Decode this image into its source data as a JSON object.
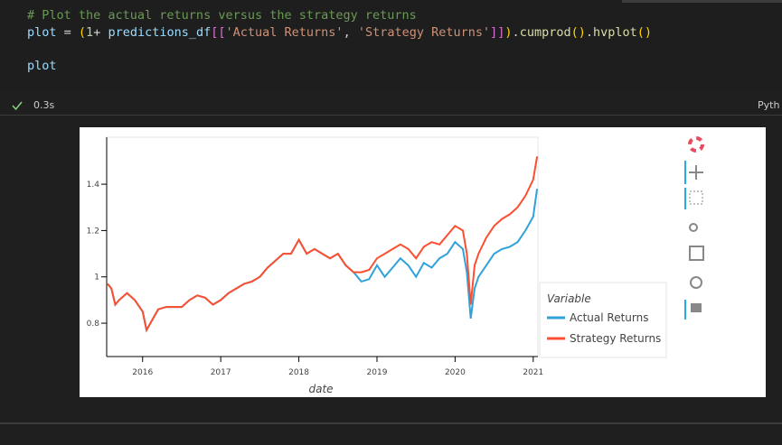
{
  "code": {
    "comment": "# Plot the actual returns versus the strategy returns",
    "line": [
      "plot",
      " = ",
      "(",
      "1",
      "+ ",
      "predictions_df",
      "[[",
      "'Actual Returns'",
      ", ",
      "'Strategy Returns'",
      "]]",
      ")",
      ".",
      "cumprod",
      "()",
      ".",
      "hvplot",
      "()"
    ],
    "result": "plot"
  },
  "status": {
    "time": "0.3s",
    "kernel": "Pyth"
  },
  "chart_data": {
    "type": "line",
    "xlabel": "date",
    "legend_title": "Variable",
    "x": [
      2015.55,
      2015.6,
      2015.65,
      2015.7,
      2015.8,
      2015.9,
      2016.0,
      2016.05,
      2016.1,
      2016.2,
      2016.3,
      2016.4,
      2016.5,
      2016.6,
      2016.7,
      2016.8,
      2016.9,
      2017.0,
      2017.1,
      2017.2,
      2017.3,
      2017.4,
      2017.5,
      2017.6,
      2017.7,
      2017.8,
      2017.9,
      2018.0,
      2018.05,
      2018.1,
      2018.2,
      2018.3,
      2018.4,
      2018.5,
      2018.6,
      2018.7,
      2018.8,
      2018.9,
      2019.0,
      2019.1,
      2019.2,
      2019.3,
      2019.4,
      2019.5,
      2019.6,
      2019.7,
      2019.8,
      2019.9,
      2020.0,
      2020.1,
      2020.15,
      2020.2,
      2020.25,
      2020.3,
      2020.4,
      2020.5,
      2020.6,
      2020.7,
      2020.8,
      2020.9,
      2021.0,
      2021.05
    ],
    "series": [
      {
        "name": "Actual Returns",
        "color": "#30a2da",
        "values": [
          0.97,
          0.95,
          0.88,
          0.9,
          0.93,
          0.9,
          0.85,
          0.77,
          0.8,
          0.86,
          0.87,
          0.87,
          0.87,
          0.9,
          0.92,
          0.91,
          0.88,
          0.9,
          0.93,
          0.95,
          0.97,
          0.98,
          1.0,
          1.04,
          1.07,
          1.1,
          1.1,
          1.16,
          1.13,
          1.1,
          1.12,
          1.1,
          1.08,
          1.1,
          1.05,
          1.02,
          0.98,
          0.99,
          1.05,
          1.0,
          1.04,
          1.08,
          1.05,
          1.0,
          1.06,
          1.04,
          1.08,
          1.1,
          1.15,
          1.12,
          1.02,
          0.82,
          0.95,
          1.0,
          1.05,
          1.1,
          1.12,
          1.13,
          1.15,
          1.2,
          1.26,
          1.38
        ]
      },
      {
        "name": "Strategy Returns",
        "color": "#fc4f30",
        "values": [
          0.97,
          0.95,
          0.88,
          0.9,
          0.93,
          0.9,
          0.85,
          0.77,
          0.8,
          0.86,
          0.87,
          0.87,
          0.87,
          0.9,
          0.92,
          0.91,
          0.88,
          0.9,
          0.93,
          0.95,
          0.97,
          0.98,
          1.0,
          1.04,
          1.07,
          1.1,
          1.1,
          1.16,
          1.13,
          1.1,
          1.12,
          1.1,
          1.08,
          1.1,
          1.05,
          1.02,
          1.02,
          1.03,
          1.08,
          1.1,
          1.12,
          1.14,
          1.12,
          1.08,
          1.13,
          1.15,
          1.14,
          1.18,
          1.22,
          1.2,
          1.1,
          0.88,
          1.05,
          1.1,
          1.17,
          1.22,
          1.25,
          1.27,
          1.3,
          1.35,
          1.42,
          1.52
        ]
      }
    ],
    "xlim": [
      2015.54,
      2021.06
    ],
    "xticks": [
      2016,
      2017,
      2018,
      2019,
      2020,
      2021
    ],
    "ylim": [
      0.656,
      1.603
    ],
    "yticks": [
      0.8,
      1,
      1.2,
      1.4
    ]
  }
}
